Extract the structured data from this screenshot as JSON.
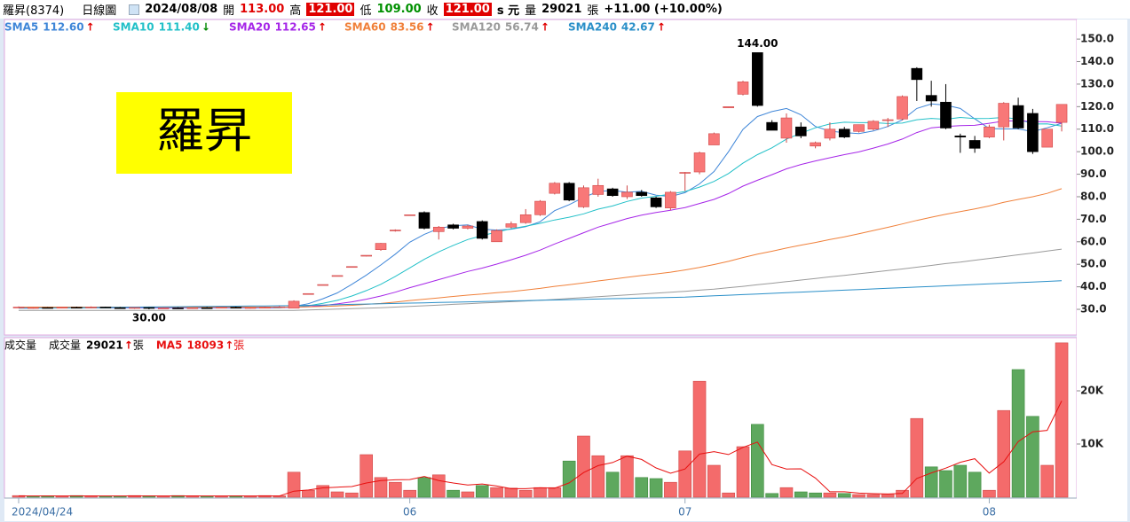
{
  "header": {
    "stock": "羅昇(8374)",
    "view": "日線圖",
    "date": "2024/08/08",
    "open_label": "開",
    "open": "113.00",
    "high_label": "高",
    "high": "121.00",
    "low_label": "低",
    "low": "109.00",
    "close_label": "收",
    "close": "121.00",
    "unit": "s 元",
    "volume_label": "量",
    "volume_unit": "張",
    "change": "+11.00 (+10.00%)"
  },
  "chart_data": [
    {
      "type": "candlestick",
      "watermark": "羅昇",
      "max_label": "144.00",
      "min_label": "30.00",
      "up_color": "#f87878",
      "down_color": "#000000",
      "open": [
        31,
        30.5,
        30.8,
        30.6,
        30.9,
        30.7,
        31,
        30.7,
        30.5,
        30.8,
        30.4,
        30.6,
        30.5,
        30.7,
        30.6,
        30.9,
        30.6,
        30.8,
        30.9,
        30.5,
        37,
        41,
        45,
        49,
        54,
        56.5,
        65,
        72,
        73,
        64.5,
        67.5,
        66,
        69,
        60,
        66.5,
        68.5,
        72,
        81.5,
        86,
        75.5,
        81,
        83.5,
        80,
        82,
        79.5,
        75,
        90.5,
        91,
        103,
        119.5,
        125.5,
        144,
        113,
        106,
        111,
        102.5,
        106,
        110,
        109,
        110,
        114,
        114.5,
        137,
        125,
        122,
        107,
        105,
        106.5,
        111,
        120.5,
        117,
        102,
        113
      ],
      "high": [
        31.3,
        31,
        31,
        31,
        31.2,
        31.3,
        31.2,
        31,
        30.9,
        31,
        30.8,
        30.9,
        30.8,
        31,
        31,
        31.2,
        30.9,
        31.2,
        31.5,
        34,
        37,
        41,
        45,
        49,
        54,
        59.5,
        65.5,
        72,
        73.5,
        67,
        68,
        67.5,
        69.5,
        65.5,
        69,
        74.5,
        78.5,
        86.5,
        86.5,
        85,
        88,
        84,
        85,
        83,
        80,
        82.5,
        91,
        100,
        108.5,
        120,
        131.5,
        144,
        114,
        117,
        113,
        104.5,
        113,
        111,
        112,
        114,
        115,
        125,
        137.5,
        131.5,
        130,
        108,
        107,
        112,
        122,
        124,
        119,
        110,
        121
      ],
      "low": [
        30.8,
        30.3,
        30.5,
        30.4,
        30.5,
        30.5,
        30.6,
        30.3,
        30.2,
        30,
        30.2,
        30.3,
        30.2,
        30.4,
        30.4,
        30.5,
        30.3,
        30.5,
        30.6,
        30.5,
        37,
        41,
        45,
        49,
        53.5,
        56,
        64.5,
        72,
        65.5,
        61,
        65.5,
        65.5,
        61,
        60,
        66,
        68,
        71.5,
        81,
        78,
        75,
        80,
        80,
        79,
        80,
        75,
        74,
        82.5,
        90,
        103,
        119.5,
        125,
        120,
        109.5,
        104,
        106,
        101.5,
        105,
        106,
        108.5,
        109.5,
        111,
        114,
        122.5,
        120,
        110,
        99.5,
        99.5,
        106,
        105,
        110,
        99,
        102,
        109
      ],
      "close": [
        31,
        30.8,
        30.6,
        30.9,
        30.7,
        31,
        30.7,
        30.5,
        30.8,
        30.4,
        30.6,
        30.5,
        30.7,
        30.6,
        30.9,
        30.6,
        30.8,
        30.9,
        31.1,
        33.6,
        37,
        41,
        45,
        49,
        54,
        59.3,
        65.2,
        72,
        66,
        66.5,
        66,
        67,
        61.5,
        65,
        68,
        72,
        78,
        86,
        78.5,
        84,
        85,
        80.5,
        82,
        80.5,
        75.5,
        82,
        90.8,
        99.5,
        108,
        120,
        131,
        120.5,
        109.5,
        115,
        107,
        104,
        110,
        106.5,
        112,
        113.5,
        114.2,
        124.5,
        132,
        122.5,
        110.5,
        106.5,
        101.5,
        111,
        121.5,
        110.5,
        100,
        110,
        121
      ],
      "series": [
        {
          "name": "SMA5",
          "color": "#3f86d8",
          "last_label": "112.60",
          "arrow": "↑",
          "values": [
            30.7,
            30.7,
            30.7,
            30.7,
            30.7,
            30.7,
            30.7,
            30.7,
            30.7,
            30.7,
            30.7,
            30.7,
            30.7,
            30.7,
            30.7,
            30.7,
            30.7,
            30.7,
            30.7,
            31.3,
            32.5,
            34.7,
            37.3,
            41.1,
            45.2,
            49.7,
            54.5,
            59.8,
            63.3,
            65.9,
            67.1,
            67.5,
            65.6,
            65.2,
            65.6,
            66.7,
            68.9,
            73.8,
            76.5,
            79.7,
            82.3,
            82.8,
            82,
            82.4,
            80.7,
            80.1,
            81.8,
            85.7,
            91.2,
            100,
            109.9,
            115.6,
            117.8,
            119.2,
            116.4,
            111.2,
            109.1,
            108.5,
            108,
            109.2,
            111.2,
            114.1,
            119.2,
            121.2,
            120.7,
            119.2,
            114.6,
            110.3,
            110.1,
            110.1,
            108.9,
            110.6,
            112.6
          ]
        },
        {
          "name": "SMA10",
          "color": "#22c0c8",
          "last_label": "111.40",
          "arrow": "↓",
          "values": [
            30.7,
            30.7,
            30.7,
            30.7,
            30.7,
            30.7,
            30.7,
            30.7,
            30.7,
            30.7,
            30.7,
            30.7,
            30.7,
            30.7,
            30.7,
            30.7,
            30.7,
            30.7,
            30.7,
            31,
            31.6,
            32.7,
            34,
            35.9,
            38.3,
            41.1,
            44.6,
            48.4,
            52.2,
            55.5,
            58.4,
            61,
            62.7,
            64.3,
            65.8,
            66.9,
            68.2,
            69.7,
            70.9,
            72.4,
            74.5,
            75.9,
            77.9,
            79.4,
            80.2,
            81.2,
            82.3,
            84.3,
            86.8,
            90.3,
            94.9,
            98.7,
            101.7,
            105.6,
            108.2,
            110.6,
            112.3,
            113.1,
            112.9,
            112.9,
            112.5,
            112.7,
            114.2,
            114.8,
            114.4,
            115.2,
            114.7,
            114.8,
            115.2,
            114.5,
            112.3,
            112.4,
            111.4
          ]
        },
        {
          "name": "SMA20",
          "color": "#a626e8",
          "last_label": "112.65",
          "arrow": "↑",
          "values": [
            30.8,
            30.8,
            30.8,
            30.8,
            30.8,
            30.8,
            30.8,
            30.8,
            30.8,
            30.8,
            30.8,
            30.8,
            30.8,
            30.8,
            30.8,
            30.8,
            30.8,
            30.8,
            30.8,
            30.9,
            31.2,
            31.7,
            32.4,
            33.3,
            34.5,
            35.9,
            37.6,
            39.6,
            41.4,
            43.2,
            45,
            46.8,
            48.3,
            50.1,
            52,
            54,
            56.3,
            59,
            61.5,
            64,
            66.5,
            68.4,
            70.3,
            71.8,
            73,
            74,
            75.2,
            77,
            78.8,
            81.4,
            84.7,
            87.3,
            89.8,
            92.4,
            94.3,
            95.9,
            97.3,
            98.7,
            99.9,
            101.6,
            103.4,
            105.6,
            108.5,
            110.6,
            111.2,
            111.6,
            111.7,
            112.6,
            113.6,
            113.7,
            113.4,
            113.3,
            112.65
          ]
        },
        {
          "name": "SMA60",
          "color": "#f0803a",
          "last_label": "83.56",
          "arrow": "↑",
          "values": [
            31,
            31,
            31,
            31,
            31,
            31,
            31,
            31,
            31,
            31,
            31,
            31,
            31,
            31,
            31,
            31,
            31,
            31,
            31,
            31,
            31.1,
            31.3,
            31.5,
            31.8,
            32.2,
            32.6,
            33.2,
            33.9,
            34.5,
            35.1,
            35.7,
            36.3,
            36.8,
            37.4,
            37.9,
            38.6,
            39.3,
            40.2,
            40.9,
            41.7,
            42.6,
            43.4,
            44.2,
            45,
            45.7,
            46.5,
            47.5,
            48.6,
            49.9,
            51.3,
            53,
            54.5,
            55.8,
            57.2,
            58.5,
            59.7,
            61,
            62.2,
            63.6,
            65,
            66.4,
            67.9,
            69.5,
            70.9,
            72.2,
            73.4,
            74.6,
            75.9,
            77.5,
            78.8,
            80,
            81.5,
            83.56
          ]
        },
        {
          "name": "SMA120",
          "color": "#9a9a9a",
          "last_label": "56.74",
          "arrow": "↑",
          "values": [
            29.5,
            29.5,
            29.5,
            29.5,
            29.5,
            29.5,
            29.5,
            29.5,
            29.5,
            29.5,
            29.5,
            29.5,
            29.5,
            29.5,
            29.5,
            29.5,
            29.5,
            29.5,
            29.5,
            29.5,
            29.7,
            29.9,
            30.1,
            30.3,
            30.5,
            30.7,
            31,
            31.3,
            31.6,
            31.9,
            32.2,
            32.5,
            32.8,
            33.1,
            33.4,
            33.7,
            34,
            34.4,
            34.8,
            35.2,
            35.6,
            36,
            36.4,
            36.8,
            37.2,
            37.6,
            38,
            38.5,
            39,
            39.6,
            40.2,
            40.9,
            41.6,
            42.3,
            43,
            43.7,
            44.4,
            45.1,
            45.8,
            46.5,
            47.2,
            47.9,
            48.7,
            49.5,
            50.3,
            51,
            51.8,
            52.6,
            53.4,
            54.2,
            55,
            55.9,
            56.74
          ]
        },
        {
          "name": "SMA240",
          "color": "#2a8fc8",
          "last_label": "42.67",
          "arrow": "↑",
          "values": [
            30.5,
            30.56,
            30.62,
            30.68,
            30.74,
            30.8,
            30.86,
            30.92,
            30.98,
            31.04,
            31.1,
            31.16,
            31.22,
            31.28,
            31.34,
            31.4,
            31.46,
            31.52,
            31.58,
            31.64,
            31.78,
            31.92,
            32.06,
            32.2,
            32.34,
            32.48,
            32.62,
            32.76,
            32.9,
            33.04,
            33.18,
            33.32,
            33.46,
            33.6,
            33.74,
            33.88,
            34.02,
            34.16,
            34.3,
            34.44,
            34.58,
            34.72,
            34.86,
            35,
            35.14,
            35.28,
            35.42,
            35.7,
            35.98,
            36.26,
            36.54,
            36.82,
            37.1,
            37.38,
            37.66,
            37.94,
            38.22,
            38.5,
            38.78,
            39.06,
            39.34,
            39.62,
            39.9,
            40.18,
            40.46,
            40.74,
            41.02,
            41.3,
            41.58,
            41.86,
            42.14,
            42.42,
            42.67
          ]
        }
      ],
      "ylim": [
        18.6,
        158.7
      ],
      "yticks": [
        {
          "value": 30,
          "label": "30.0"
        },
        {
          "value": 40,
          "label": "40.0"
        },
        {
          "value": 50,
          "label": "50.0"
        },
        {
          "value": 60,
          "label": "60.0"
        },
        {
          "value": 70,
          "label": "70.0"
        },
        {
          "value": 80,
          "label": "80.0"
        },
        {
          "value": 90,
          "label": "90.0"
        },
        {
          "value": 100,
          "label": "100.0"
        },
        {
          "value": 110,
          "label": "110.0"
        },
        {
          "value": 120,
          "label": "120.0"
        },
        {
          "value": 130,
          "label": "130.0"
        },
        {
          "value": 140,
          "label": "140.0"
        },
        {
          "value": 150,
          "label": "150.0"
        }
      ]
    },
    {
      "type": "bar",
      "title": "成交量",
      "name": "成交量",
      "arrow": "↑",
      "unit": "張",
      "up_color": "#f46b6b",
      "down_color": "#5ea85e",
      "categories": [
        "2024/04/24",
        null,
        null,
        null,
        null,
        null,
        null,
        null,
        null,
        null,
        null,
        null,
        null,
        null,
        null,
        null,
        null,
        null,
        null,
        null,
        null,
        null,
        null,
        null,
        null,
        null,
        null,
        "06",
        null,
        null,
        null,
        null,
        null,
        null,
        null,
        null,
        null,
        null,
        null,
        null,
        null,
        null,
        null,
        null,
        null,
        null,
        "07",
        null,
        null,
        null,
        null,
        null,
        null,
        null,
        null,
        null,
        null,
        null,
        null,
        null,
        null,
        null,
        null,
        null,
        null,
        null,
        null,
        "08",
        null,
        null,
        null,
        null,
        null
      ],
      "values": [
        300,
        200,
        250,
        200,
        300,
        250,
        200,
        200,
        300,
        250,
        200,
        300,
        250,
        200,
        200,
        250,
        200,
        300,
        250,
        4700,
        1300,
        2200,
        1000,
        800,
        8000,
        3700,
        2800,
        1300,
        3700,
        4200,
        1300,
        1000,
        2200,
        1800,
        1700,
        1300,
        1800,
        1800,
        6800,
        11500,
        7800,
        4700,
        7800,
        3700,
        3500,
        2800,
        8700,
        21800,
        6000,
        800,
        9500,
        13700,
        700,
        1800,
        1000,
        800,
        800,
        700,
        500,
        500,
        500,
        1300,
        14800,
        5700,
        5000,
        6000,
        4700,
        1300,
        16300,
        24000,
        15200,
        6000,
        29021
      ],
      "series": [
        {
          "name": "MA5",
          "color": "#e81010",
          "arrow": "↑",
          "unit": "張",
          "values": [
            240,
            240,
            240,
            240,
            240,
            240,
            240,
            240,
            240,
            240,
            240,
            240,
            240,
            240,
            240,
            240,
            240,
            240,
            240,
            1140,
            1350,
            1750,
            1890,
            2000,
            2660,
            3140,
            3260,
            3320,
            3900,
            3140,
            2660,
            2300,
            2480,
            2100,
            1600,
            1600,
            1760,
            1680,
            2680,
            4640,
            5940,
            6520,
            7720,
            7100,
            5500,
            4500,
            5300,
            8100,
            8560,
            8020,
            9360,
            10360,
            6140,
            5300,
            5340,
            3600,
            1020,
            1020,
            760,
            660,
            600,
            700,
            3520,
            4560,
            5460,
            6560,
            7240,
            4540,
            6660,
            10460,
            12300,
            12560,
            18093
          ]
        }
      ],
      "ylim": [
        0,
        30000
      ],
      "yticks": [
        {
          "value": 10000,
          "label": "10K"
        },
        {
          "value": 20000,
          "label": "20K"
        }
      ]
    }
  ]
}
